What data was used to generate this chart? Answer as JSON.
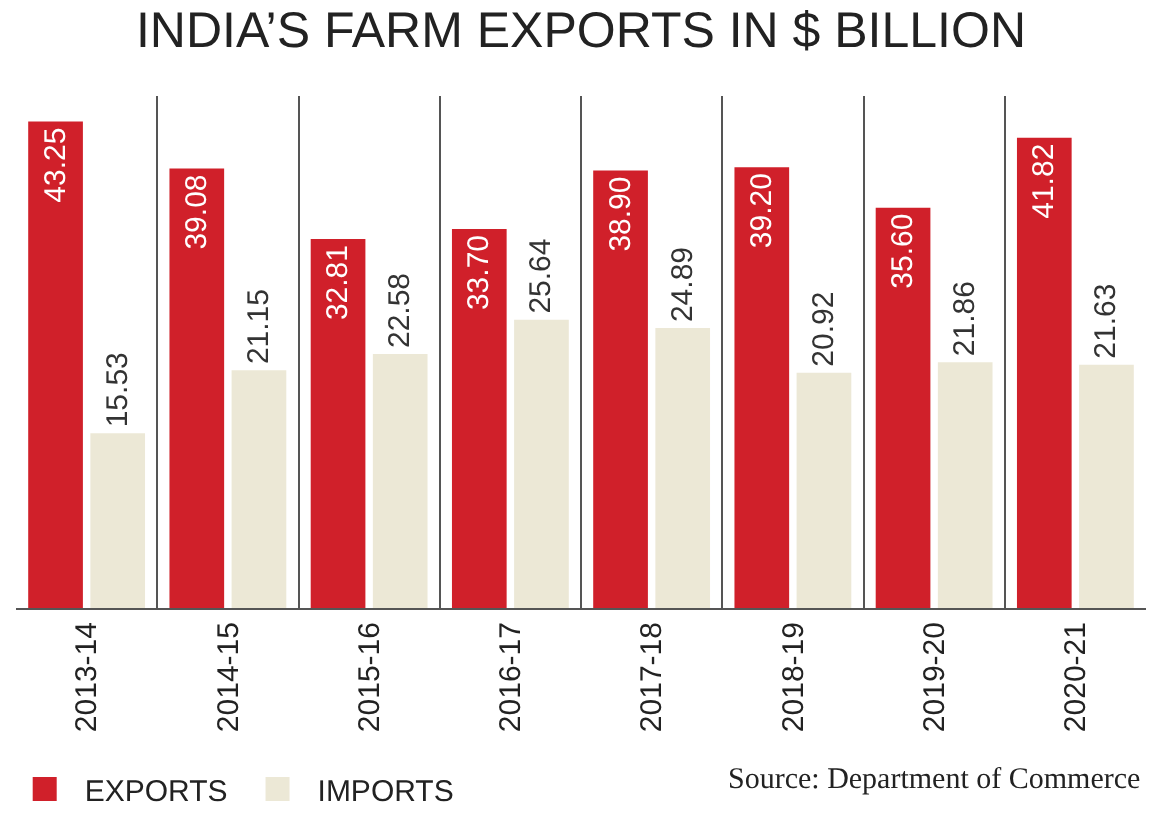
{
  "chart_data": {
    "type": "bar",
    "title": "INDIA’S FARM EXPORTS IN $ BILLION",
    "categories": [
      "2013-14",
      "2014-15",
      "2015-16",
      "2016-17",
      "2017-18",
      "2018-19",
      "2019-20",
      "2020-21"
    ],
    "series": [
      {
        "name": "EXPORTS",
        "color": "#d0202a",
        "values": [
          43.25,
          39.08,
          32.81,
          33.7,
          38.9,
          39.2,
          35.6,
          41.82
        ],
        "value_labels": [
          "43.25",
          "39.08",
          "32.81",
          "33.70",
          "38.90",
          "39.20",
          "35.60",
          "41.82"
        ]
      },
      {
        "name": "IMPORTS",
        "color": "#ece8d6",
        "values": [
          15.53,
          21.15,
          22.58,
          25.64,
          24.89,
          20.92,
          21.86,
          21.63
        ],
        "value_labels": [
          "15.53",
          "21.15",
          "22.58",
          "25.64",
          "24.89",
          "20.92",
          "21.86",
          "21.63"
        ]
      }
    ],
    "annotations": [
      "Source: Department of Commerce"
    ],
    "data_labels": true,
    "grid": "x",
    "legend": "bottom left"
  }
}
